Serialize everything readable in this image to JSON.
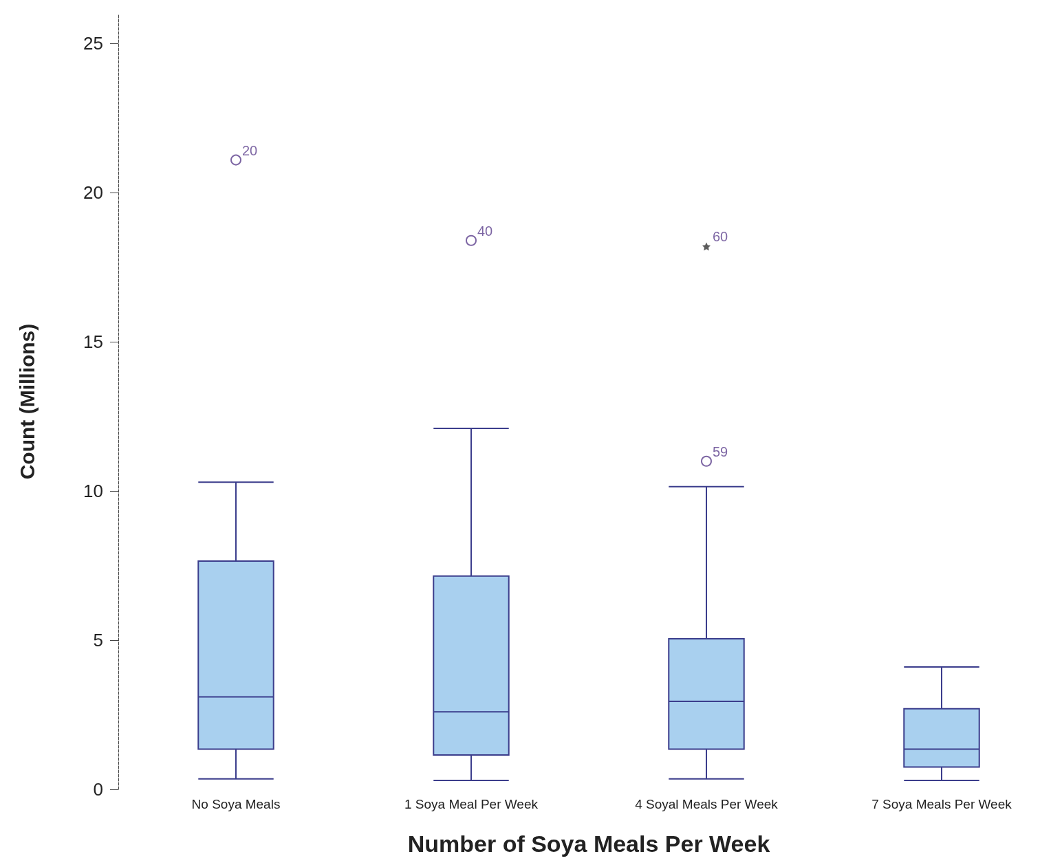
{
  "chart_data": {
    "type": "box",
    "xlabel": "Number of Soya Meals Per Week",
    "ylabel": "Count (Millions)",
    "categories": [
      "No Soya Meals",
      "1 Soya Meal Per Week",
      "4 Soyal Meals Per Week",
      "7 Soya Meals Per Week"
    ],
    "series": [
      {
        "color": "#a9d0ef",
        "boxes": [
          {
            "low": 0.35,
            "q1": 1.35,
            "median": 3.1,
            "q3": 7.65,
            "high": 10.3
          },
          {
            "low": 0.3,
            "q1": 1.15,
            "median": 2.6,
            "q3": 7.15,
            "high": 12.1
          },
          {
            "low": 0.35,
            "q1": 1.35,
            "median": 2.95,
            "q3": 5.05,
            "high": 10.15
          },
          {
            "low": 0.3,
            "q1": 0.75,
            "median": 1.35,
            "q3": 2.7,
            "high": 4.1
          }
        ]
      },
      {
        "type": "scatter",
        "color": "#5b3f8c",
        "marker": "circle",
        "x": [
          "No Soya Meals",
          "1 Soya Meal Per Week",
          "4 Soyal Meals Per Week"
        ],
        "values": [
          21.1,
          18.4,
          11.0
        ]
      },
      {
        "type": "scatter",
        "color": "#333333",
        "marker": "star",
        "x": [
          "4 Soyal Meals Per Week"
        ],
        "values": [
          18.2
        ]
      }
    ],
    "annotations": [
      {
        "text": "20",
        "x": "No Soya Meals",
        "y": 21.1
      },
      {
        "text": "40",
        "x": "1 Soya Meal Per Week",
        "y": 18.4
      },
      {
        "text": "59",
        "x": "4 Soyal Meals Per Week",
        "y": 11.0
      },
      {
        "text": "60",
        "x": "4 Soyal Meals Per Week",
        "y": 18.2
      }
    ],
    "ylim": [
      0,
      26
    ],
    "yticks": [
      0,
      5,
      10,
      15,
      20,
      25
    ],
    "grid": false
  }
}
